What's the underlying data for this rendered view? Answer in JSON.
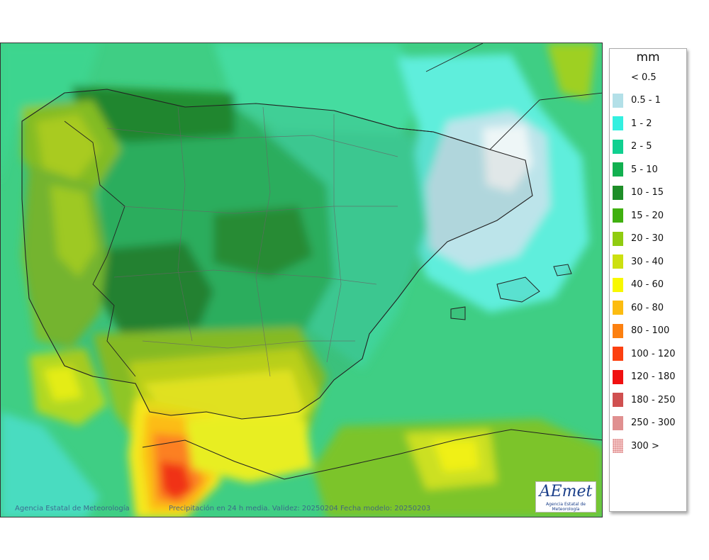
{
  "map": {
    "credit": "Agencia Estatal de Meteorología",
    "caption": "Precipitación en 24 h media. Validez: 20250204 Fecha modelo: 20250203",
    "logo_text": "AEmet",
    "logo_subtext": "Agencia Estatal de Meteorología"
  },
  "legend": {
    "unit": "mm",
    "entries": [
      {
        "label": "< 0.5",
        "color": "#ffffff"
      },
      {
        "label": "0.5 - 1",
        "color": "#b3e0e8"
      },
      {
        "label": "1 - 2",
        "color": "#33f0e0"
      },
      {
        "label": "2 - 5",
        "color": "#10d090"
      },
      {
        "label": "5 - 10",
        "color": "#12b050"
      },
      {
        "label": "10 - 15",
        "color": "#1e8e28"
      },
      {
        "label": "15 - 20",
        "color": "#40b010"
      },
      {
        "label": "20 - 30",
        "color": "#90cc10"
      },
      {
        "label": "30 - 40",
        "color": "#cce010"
      },
      {
        "label": "40 - 60",
        "color": "#f8f800"
      },
      {
        "label": "60 - 80",
        "color": "#fcbc10"
      },
      {
        "label": "80 - 100",
        "color": "#fc8010"
      },
      {
        "label": "100 - 120",
        "color": "#fc4010"
      },
      {
        "label": "120 - 180",
        "color": "#f01010"
      },
      {
        "label": "180 - 250",
        "color": "#d05050"
      },
      {
        "label": "250 - 300",
        "color": "#e09090"
      },
      {
        "label": "300 >",
        "color": "#f4c8c8"
      }
    ]
  }
}
